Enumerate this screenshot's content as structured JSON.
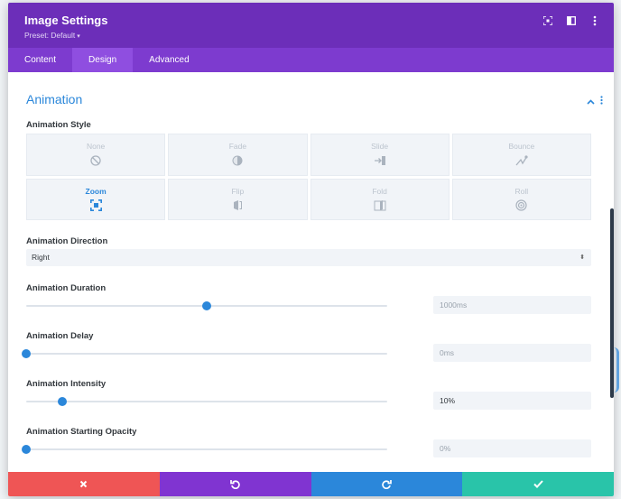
{
  "header": {
    "title": "Image Settings",
    "preset": "Preset: Default",
    "preset_caret": "▾"
  },
  "tabs": [
    {
      "label": "Content",
      "active": false
    },
    {
      "label": "Design",
      "active": true
    },
    {
      "label": "Advanced",
      "active": false
    }
  ],
  "section": {
    "title": "Animation"
  },
  "animation_style": {
    "label": "Animation Style",
    "options": [
      {
        "label": "None",
        "icon": "none-icon",
        "active": false
      },
      {
        "label": "Fade",
        "icon": "fade-icon",
        "active": false
      },
      {
        "label": "Slide",
        "icon": "slide-icon",
        "active": false
      },
      {
        "label": "Bounce",
        "icon": "bounce-icon",
        "active": false
      },
      {
        "label": "Zoom",
        "icon": "zoom-icon",
        "active": true
      },
      {
        "label": "Flip",
        "icon": "flip-icon",
        "active": false
      },
      {
        "label": "Fold",
        "icon": "fold-icon",
        "active": false
      },
      {
        "label": "Roll",
        "icon": "roll-icon",
        "active": false
      }
    ]
  },
  "animation_direction": {
    "label": "Animation Direction",
    "value": "Right",
    "arrow": "⬍"
  },
  "sliders": {
    "duration": {
      "label": "Animation Duration",
      "value": "1000ms",
      "level": 0.5
    },
    "delay": {
      "label": "Animation Delay",
      "value": "0ms",
      "level": 0.0
    },
    "intensity": {
      "label": "Animation Intensity",
      "value": "10%",
      "level": 0.1
    },
    "opacity": {
      "label": "Animation Starting Opacity",
      "value": "0%",
      "level": 0.0
    }
  },
  "colors": {
    "header": "#6c2eb9",
    "tabs": "#7d3bcf",
    "accent": "#2b87da",
    "cancel": "#ef5555",
    "undo": "#8034d1",
    "redo": "#2b87da",
    "save": "#29c4a9"
  }
}
